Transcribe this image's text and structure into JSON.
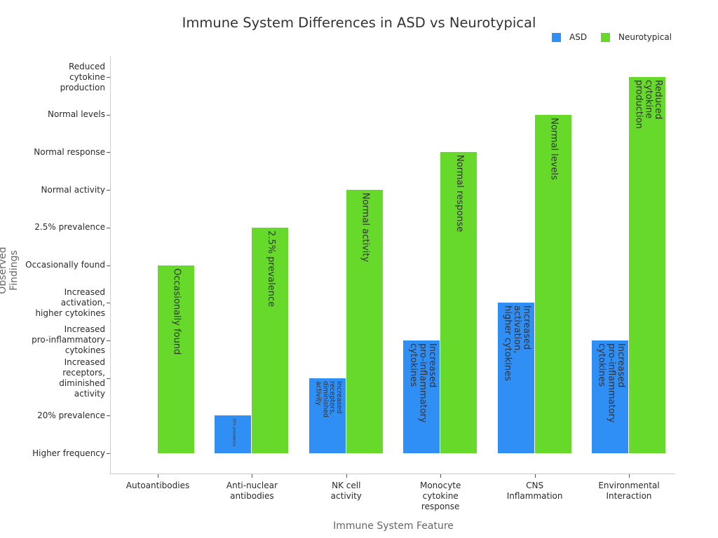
{
  "chart_data": {
    "type": "bar",
    "title": "Immune System Differences in ASD vs Neurotypical",
    "xlabel": "Immune System Feature",
    "ylabel": "Observed Findings",
    "y_categories": [
      "Higher frequency",
      "20% prevalence",
      "Increased\nreceptors,\ndiminished\nactivity",
      "Increased\npro-inflammatory\ncytokines",
      "Increased\nactivation,\nhigher cytokines",
      "Occasionally found",
      "2.5% prevalence",
      "Normal activity",
      "Normal response",
      "Normal levels",
      "Reduced\ncytokine\nproduction"
    ],
    "categories": [
      "Autoantibodies",
      "Anti-nuclear\nantibodies",
      "NK cell\nactivity",
      "Monocyte\ncytokine\nresponse",
      "CNS\nInflammation",
      "Environmental\nInteraction"
    ],
    "legend_position": "top-right",
    "grid": false,
    "series": [
      {
        "name": "ASD",
        "color": "#2f8ff5",
        "values": [
          "Higher frequency",
          "20% prevalence",
          "Increased\nreceptors,\ndiminished\nactivity",
          "Increased\npro-inflammatory\ncytokines",
          "Increased\nactivation,\nhigher cytokines",
          "Increased\npro-inflammatory\ncytokines"
        ]
      },
      {
        "name": "Neurotypical",
        "color": "#66d92a",
        "values": [
          "Occasionally found",
          "2.5% prevalence",
          "Normal activity",
          "Normal response",
          "Normal levels",
          "Reduced\ncytokine\nproduction"
        ]
      }
    ]
  }
}
